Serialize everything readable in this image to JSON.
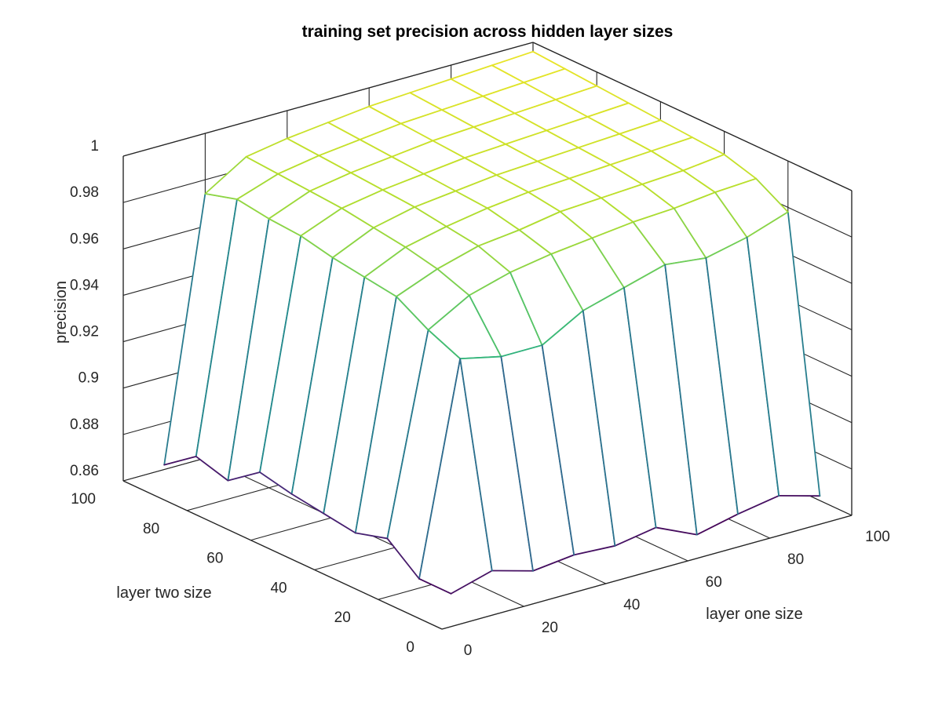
{
  "chart_data": {
    "type": "mesh",
    "title": "training set precision across hidden layer sizes",
    "xlabel": "layer one size",
    "ylabel": "layer two size",
    "zlabel": "precision",
    "xlim": [
      0,
      100
    ],
    "ylim": [
      0,
      100
    ],
    "zlim": [
      0.86,
      1
    ],
    "x_ticks": [
      "0",
      "20",
      "40",
      "60",
      "80",
      "100"
    ],
    "y_ticks": [
      "0",
      "20",
      "40",
      "60",
      "80",
      "100"
    ],
    "z_ticks": [
      "0.86",
      "0.88",
      "0.9",
      "0.92",
      "0.94",
      "0.96",
      "0.98",
      "1"
    ],
    "grid": true,
    "colormap": "viridis",
    "layer_one_sizes": [
      10,
      20,
      30,
      40,
      50,
      60,
      70,
      80,
      90,
      100
    ],
    "layer_two_sizes": [
      10,
      20,
      30,
      40,
      50,
      60,
      70,
      80,
      90,
      100
    ],
    "precision": [
      [
        0.864,
        0.869,
        0.864,
        0.866,
        0.865,
        0.868,
        0.86,
        0.864,
        0.867,
        0.862
      ],
      [
        0.864,
        0.954,
        0.95,
        0.95,
        0.96,
        0.965,
        0.97,
        0.968,
        0.972,
        0.978
      ],
      [
        0.875,
        0.96,
        0.97,
        0.975,
        0.978,
        0.98,
        0.982,
        0.983,
        0.985,
        0.986
      ],
      [
        0.871,
        0.968,
        0.975,
        0.98,
        0.982,
        0.985,
        0.986,
        0.987,
        0.988,
        0.99
      ],
      [
        0.873,
        0.97,
        0.978,
        0.982,
        0.985,
        0.987,
        0.988,
        0.989,
        0.99,
        0.991
      ],
      [
        0.875,
        0.972,
        0.98,
        0.984,
        0.986,
        0.988,
        0.989,
        0.99,
        0.991,
        0.992
      ],
      [
        0.878,
        0.975,
        0.982,
        0.985,
        0.987,
        0.989,
        0.99,
        0.991,
        0.992,
        0.993
      ],
      [
        0.868,
        0.976,
        0.983,
        0.986,
        0.988,
        0.99,
        0.991,
        0.992,
        0.993,
        0.994
      ],
      [
        0.872,
        0.978,
        0.984,
        0.987,
        0.989,
        0.991,
        0.992,
        0.993,
        0.994,
        0.995
      ],
      [
        0.862,
        0.974,
        0.985,
        0.988,
        0.99,
        0.992,
        0.993,
        0.994,
        0.995,
        0.996
      ]
    ]
  }
}
